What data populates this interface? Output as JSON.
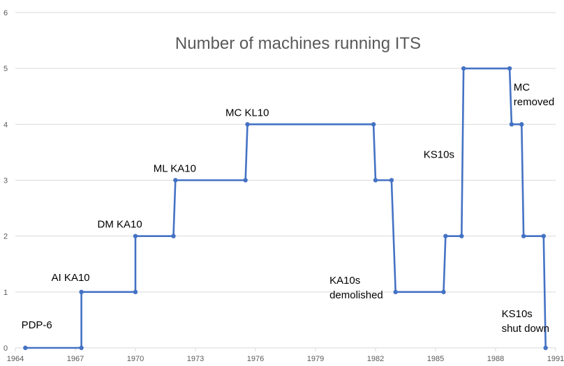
{
  "chart_data": {
    "type": "line",
    "title": "Number of machines running ITS",
    "xlabel": "",
    "ylabel": "",
    "xlim": [
      1964,
      1991
    ],
    "ylim": [
      0,
      6
    ],
    "x_ticks": [
      1964,
      1967,
      1970,
      1973,
      1976,
      1979,
      1982,
      1985,
      1988,
      1991
    ],
    "y_ticks": [
      0,
      1,
      2,
      3,
      4,
      5,
      6
    ],
    "grid": "horizontal",
    "legend": "none",
    "series": [
      {
        "color": "#4472c4",
        "points": [
          [
            1964.5,
            0
          ],
          [
            1967.3,
            0
          ],
          [
            1967.3,
            1
          ],
          [
            1970.0,
            1
          ],
          [
            1970.0,
            2
          ],
          [
            1971.9,
            2
          ],
          [
            1972.0,
            3
          ],
          [
            1975.5,
            3
          ],
          [
            1975.6,
            4
          ],
          [
            1981.9,
            4
          ],
          [
            1982.0,
            3
          ],
          [
            1982.8,
            3
          ],
          [
            1983.0,
            1
          ],
          [
            1985.4,
            1
          ],
          [
            1985.5,
            2
          ],
          [
            1986.3,
            2
          ],
          [
            1986.4,
            5
          ],
          [
            1988.7,
            5
          ],
          [
            1988.8,
            4
          ],
          [
            1989.3,
            4
          ],
          [
            1989.4,
            2
          ],
          [
            1990.4,
            2
          ],
          [
            1990.5,
            0
          ]
        ]
      }
    ],
    "annotations": [
      {
        "lines": [
          "PDP-6"
        ],
        "x": 1964.3,
        "y": 0.35
      },
      {
        "lines": [
          "AI KA10"
        ],
        "x": 1965.8,
        "y": 1.2
      },
      {
        "lines": [
          "DM KA10"
        ],
        "x": 1968.1,
        "y": 2.15
      },
      {
        "lines": [
          "ML KA10"
        ],
        "x": 1970.9,
        "y": 3.15
      },
      {
        "lines": [
          "MC KL10"
        ],
        "x": 1974.5,
        "y": 4.15
      },
      {
        "lines": [
          "KA10s",
          "demolished"
        ],
        "x": 1979.7,
        "y": 1.15
      },
      {
        "lines": [
          "KS10s"
        ],
        "x": 1984.4,
        "y": 3.4
      },
      {
        "lines": [
          "MC",
          "removed"
        ],
        "x": 1988.9,
        "y": 4.6
      },
      {
        "lines": [
          "KS10s",
          "shut down"
        ],
        "x": 1988.3,
        "y": 0.55
      }
    ]
  }
}
